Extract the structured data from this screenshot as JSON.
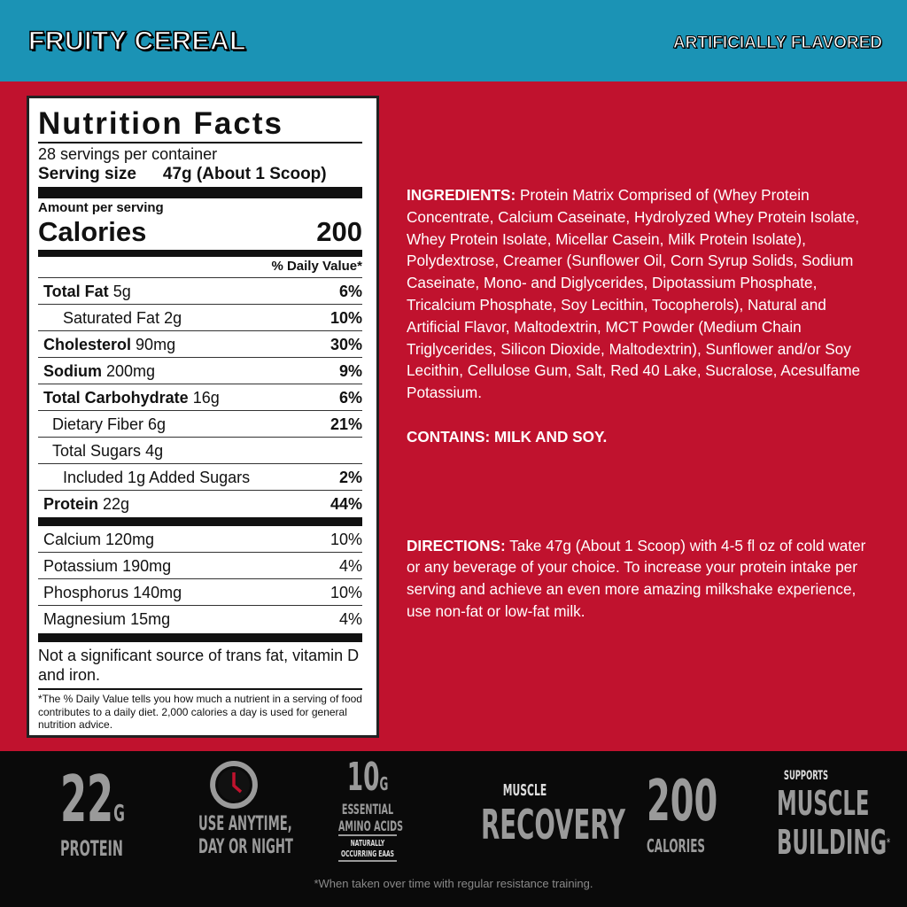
{
  "header": {
    "title": "FRUITY CEREAL",
    "flavor": "ARTIFICIALLY FLAVORED"
  },
  "colors": {
    "header": "#1b93b5",
    "background": "#c0122e",
    "footer": "#0a0a0a"
  },
  "label": {
    "title": "Nutrition Facts",
    "servings": "28 servings per container",
    "serving_size_label": "Serving size",
    "serving_size": "47g (About 1 Scoop)",
    "amount_per_serving": "Amount per serving",
    "calories_label": "Calories",
    "calories": "200",
    "dv_header": "% Daily Value*",
    "rows": [
      {
        "name": "Total Fat",
        "amount": "5g",
        "dv": "6%",
        "bold": true,
        "indent": 0
      },
      {
        "name": "Saturated Fat",
        "amount": "2g",
        "dv": "10%",
        "bold": false,
        "indent": 2
      },
      {
        "name": "Cholesterol",
        "amount": "90mg",
        "dv": "30%",
        "bold": true,
        "indent": 0
      },
      {
        "name": "Sodium",
        "amount": "200mg",
        "dv": "9%",
        "bold": true,
        "indent": 0
      },
      {
        "name": "Total Carbohydrate",
        "amount": "16g",
        "dv": "6%",
        "bold": true,
        "indent": 0
      },
      {
        "name": "Dietary Fiber",
        "amount": "6g",
        "dv": "21%",
        "bold": false,
        "indent": 1
      },
      {
        "name": "Total Sugars",
        "amount": "4g",
        "dv": "",
        "bold": false,
        "indent": 1
      },
      {
        "name": "Included 1g Added Sugars",
        "amount": "",
        "dv": "2%",
        "bold": false,
        "indent": 2
      },
      {
        "name": "Protein",
        "amount": "22g",
        "dv": "44%",
        "bold": true,
        "indent": 0
      }
    ],
    "minerals": [
      {
        "name": "Calcium",
        "amount": "120mg",
        "dv": "10%"
      },
      {
        "name": "Potassium",
        "amount": "190mg",
        "dv": "4%"
      },
      {
        "name": "Phosphorus",
        "amount": "140mg",
        "dv": "10%"
      },
      {
        "name": "Magnesium",
        "amount": "15mg",
        "dv": "4%"
      }
    ],
    "not_significant": "Not a significant source of trans fat, vitamin D and iron.",
    "footnote": "*The % Daily Value tells you how much a nutrient in a serving of food contributes to a daily diet. 2,000 calories a day is used for general nutrition advice."
  },
  "ingredients": {
    "label": "INGREDIENTS:",
    "text": " Protein Matrix Comprised of (Whey Protein Concentrate, Calcium Caseinate, Hydrolyzed Whey Protein Isolate, Whey Protein Isolate, Micellar Casein, Milk Protein Isolate), Polydextrose, Creamer (Sunflower Oil, Corn Syrup Solids, Sodium Caseinate, Mono- and Diglycerides, Dipotassium Phosphate, Tricalcium Phosphate, Soy Lecithin, Tocopherols), Natural and Artificial Flavor, Maltodextrin, MCT Powder (Medium Chain Triglycerides, Silicon Dioxide, Maltodextrin), Sunflower and/or Soy Lecithin, Cellulose Gum, Salt, Red 40 Lake, Sucralose, Acesulfame Potassium."
  },
  "contains": "CONTAINS: MILK AND SOY.",
  "directions": {
    "label": "DIRECTIONS:",
    "text": " Take 47g (About 1 Scoop) with 4-5 fl oz of cold water or any beverage of your choice. To increase your protein intake per serving and achieve an even more amazing milkshake experience, use non-fat or low-fat milk."
  },
  "badges": {
    "protein": {
      "value": "22",
      "unit": "G",
      "label": "PROTEIN"
    },
    "anytime": {
      "icon": "clock-icon",
      "line1": "USE ANYTIME,",
      "line2": "DAY OR NIGHT"
    },
    "eaa": {
      "value": "10",
      "unit": "G",
      "line1": "ESSENTIAL",
      "line2": "AMINO ACIDS",
      "sub1": "NATURALLY",
      "sub2": "OCCURRING EAAS"
    },
    "recovery": {
      "top": "MUSCLE",
      "main": "RECOVERY"
    },
    "calories": {
      "value": "200",
      "label": "CALORIES"
    },
    "building": {
      "top": "SUPPORTS",
      "line1": "MUSCLE",
      "line2": "BUILDING",
      "mark": "*"
    }
  },
  "footnote": "*When taken over time with regular resistance training."
}
